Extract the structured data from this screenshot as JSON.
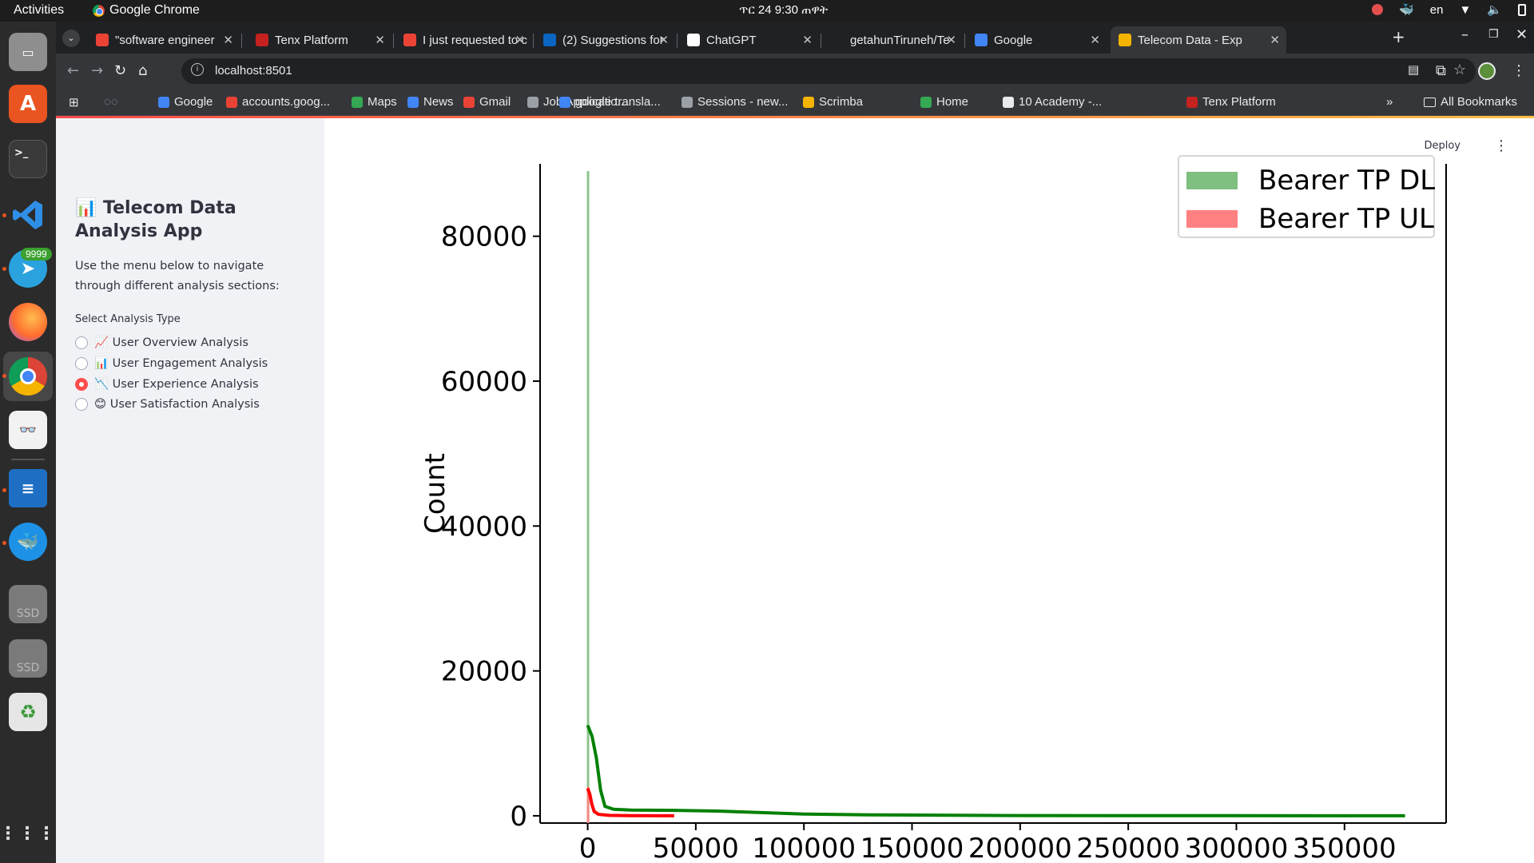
{
  "system": {
    "activities": "Activities",
    "app_name": "Google Chrome",
    "clock": "ጥር 24  9:30 ጠዋት",
    "lang": "en"
  },
  "dock": {
    "badge": "9999",
    "ssd_label": "SSD"
  },
  "tabs": [
    {
      "title": "\"software engineer",
      "icon": "gmail-icon",
      "color": "#ea4335"
    },
    {
      "title": "Tenx Platform",
      "icon": "tenx-icon",
      "color": "#c5221f"
    },
    {
      "title": "I just requested to c",
      "icon": "gmail-icon",
      "color": "#ea4335"
    },
    {
      "title": "(2) Suggestions for",
      "icon": "linkedin-icon",
      "color": "#0a66c2"
    },
    {
      "title": "ChatGPT",
      "icon": "chatgpt-icon",
      "color": "#ffffff"
    },
    {
      "title": "getahunTiruneh/Te",
      "icon": "github-icon",
      "color": "#202124"
    },
    {
      "title": "Google",
      "icon": "google-icon",
      "color": "#4285f4"
    },
    {
      "title": "Telecom Data - Exp",
      "icon": "chart-icon",
      "color": "#f4b400",
      "active": true
    }
  ],
  "toolbar": {
    "url": "localhost:8501"
  },
  "bookmarks": {
    "items": [
      "Google",
      "accounts.goog...",
      "Maps",
      "News",
      "Gmail",
      "Job Applicatio...",
      "google transla...",
      "Sessions - new...",
      "Scrimba",
      "Home",
      "10 Academy -...",
      "Tenx Platform"
    ],
    "all": "All Bookmarks"
  },
  "app": {
    "title": "📊 Telecom Data Analysis App",
    "description": "Use the menu below to navigate through different analysis sections:",
    "radio_label": "Select Analysis Type",
    "options": [
      {
        "label": "📈 User Overview Analysis",
        "selected": false
      },
      {
        "label": "📊 User Engagement Analysis",
        "selected": false
      },
      {
        "label": "📉 User Experience Analysis",
        "selected": true
      },
      {
        "label": "😊 User Satisfaction Analysis",
        "selected": false
      }
    ],
    "deploy": "Deploy"
  },
  "chart_data": {
    "type": "area",
    "title": "",
    "xlabel": "",
    "ylabel": "Count",
    "xlim": [
      -22000,
      397000
    ],
    "ylim": [
      -1000,
      90000
    ],
    "x_ticks": [
      0,
      50000,
      100000,
      150000,
      200000,
      250000,
      300000,
      350000
    ],
    "y_ticks": [
      0,
      20000,
      40000,
      60000,
      80000
    ],
    "legend_position": "top-right",
    "grid": false,
    "series": [
      {
        "name": "Bearer TP DL",
        "color": "#008000",
        "fill": "#7fbf7f",
        "histogram_spike": {
          "x": 0,
          "count": 89000
        },
        "kde": [
          [
            0,
            12500
          ],
          [
            2000,
            11000
          ],
          [
            4000,
            8000
          ],
          [
            6000,
            3500
          ],
          [
            8000,
            1300
          ],
          [
            12000,
            900
          ],
          [
            20000,
            800
          ],
          [
            40000,
            750
          ],
          [
            60000,
            650
          ],
          [
            80000,
            450
          ],
          [
            100000,
            250
          ],
          [
            130000,
            120
          ],
          [
            200000,
            40
          ],
          [
            300000,
            10
          ],
          [
            378000,
            0
          ]
        ]
      },
      {
        "name": "Bearer TP UL",
        "color": "#ff0000",
        "fill": "#ff8080",
        "histogram_spike": {
          "x": 0,
          "count": 4000
        },
        "kde": [
          [
            0,
            3800
          ],
          [
            1000,
            3000
          ],
          [
            2000,
            1500
          ],
          [
            3000,
            600
          ],
          [
            5000,
            200
          ],
          [
            10000,
            60
          ],
          [
            20000,
            10
          ],
          [
            40000,
            0
          ]
        ]
      }
    ]
  }
}
